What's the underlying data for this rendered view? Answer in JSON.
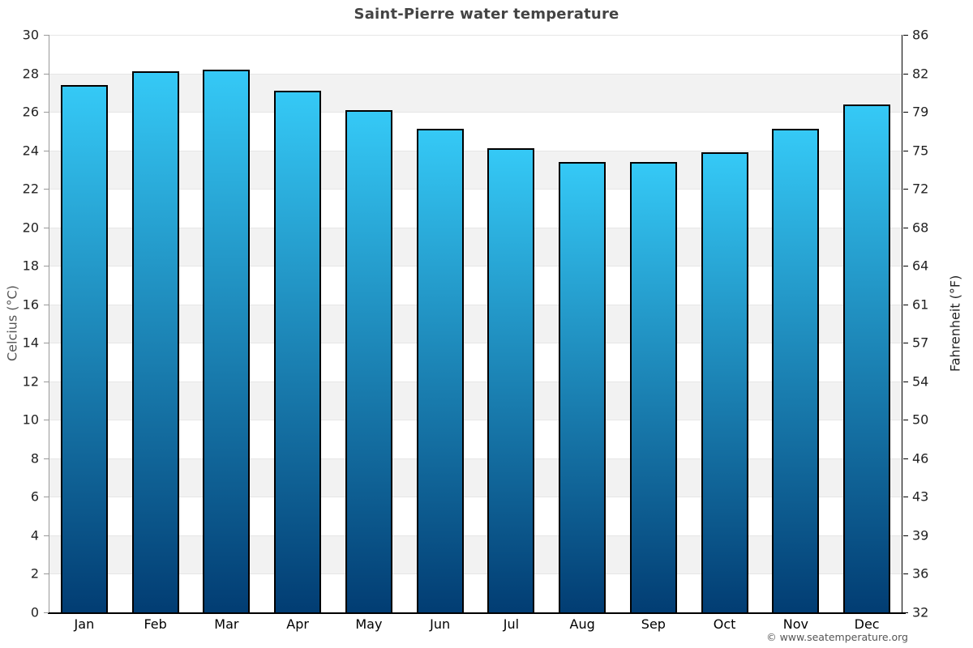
{
  "header": {
    "title": "Saint-Pierre water temperature"
  },
  "chart_data": {
    "type": "bar",
    "title": "Saint-Pierre water temperature",
    "categories": [
      "Jan",
      "Feb",
      "Mar",
      "Apr",
      "May",
      "Jun",
      "Jul",
      "Aug",
      "Sep",
      "Oct",
      "Nov",
      "Dec"
    ],
    "series": [
      {
        "name": "Water temperature",
        "values_celsius": [
          27.4,
          28.1,
          28.2,
          27.1,
          26.1,
          25.1,
          24.1,
          23.4,
          23.4,
          23.9,
          25.1,
          26.4
        ]
      }
    ],
    "ylabel_left": "Celcius (°C)",
    "ylabel_right": "Fahrenheit (°F)",
    "ylim_celsius": [
      0,
      30
    ],
    "left_ticks_celsius": [
      30,
      28,
      26,
      24,
      22,
      20,
      18,
      16,
      14,
      12,
      10,
      8,
      6,
      4,
      2,
      0
    ],
    "right_ticks_fahrenheit": [
      86,
      82,
      79,
      75,
      72,
      68,
      64,
      61,
      57,
      54,
      50,
      46,
      43,
      39,
      36,
      32
    ],
    "grid": true,
    "legend_position": "none",
    "colors": {
      "band_even": "#ffffff",
      "band_odd": "#f2f2f2",
      "gridline": "#e6e6e6",
      "bar_gradient_top": "#35c9f6",
      "bar_gradient_bottom": "#023d73",
      "bar_border": "#000000",
      "left_axis": "#999999",
      "right_axis": "#000000",
      "bottom_axis": "#000000",
      "title": "#444444",
      "tick_label": "#222222"
    }
  },
  "footer": {
    "copyright": "© www.seatemperature.org"
  }
}
